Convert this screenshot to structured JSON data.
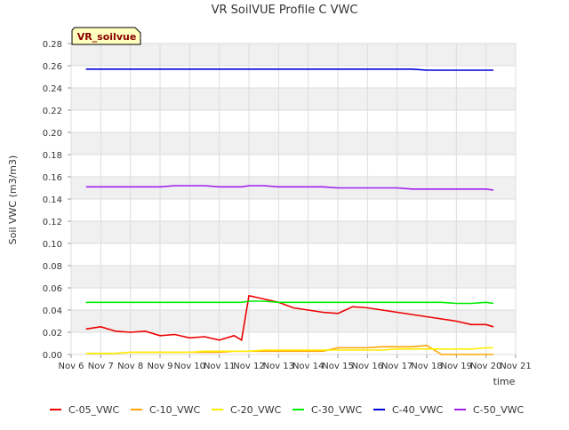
{
  "chart_data": {
    "type": "line",
    "title": "VR SoilVUE Profile C VWC",
    "xlabel": "time",
    "ylabel": "Soil VWC (m3/m3)",
    "station_label": "VR_soilvue",
    "x_ticks": [
      "Nov 6",
      "Nov 7",
      "Nov 8",
      "Nov 9",
      "Nov 10",
      "Nov 11",
      "Nov 12",
      "Nov 13",
      "Nov 14",
      "Nov 15",
      "Nov 16",
      "Nov 17",
      "Nov 18",
      "Nov 19",
      "Nov 20",
      "Nov 21"
    ],
    "xlim": [
      "Nov 6",
      "Nov 21"
    ],
    "ylim": [
      0,
      0.28
    ],
    "y_ticks": [
      "0.00",
      "0.02",
      "0.04",
      "0.06",
      "0.08",
      "0.10",
      "0.12",
      "0.14",
      "0.16",
      "0.18",
      "0.20",
      "0.22",
      "0.24",
      "0.26",
      "0.28"
    ],
    "grid": true,
    "legend_position": "bottom",
    "x": [
      "Nov 6 12:00",
      "Nov 7 00:00",
      "Nov 7 12:00",
      "Nov 8 00:00",
      "Nov 8 12:00",
      "Nov 9 00:00",
      "Nov 9 12:00",
      "Nov 10 00:00",
      "Nov 10 12:00",
      "Nov 11 00:00",
      "Nov 11 12:00",
      "Nov 11 18:00",
      "Nov 12 00:00",
      "Nov 12 12:00",
      "Nov 13 00:00",
      "Nov 13 12:00",
      "Nov 14 00:00",
      "Nov 14 12:00",
      "Nov 15 00:00",
      "Nov 15 12:00",
      "Nov 16 00:00",
      "Nov 16 12:00",
      "Nov 17 00:00",
      "Nov 17 12:00",
      "Nov 18 00:00",
      "Nov 18 12:00",
      "Nov 19 00:00",
      "Nov 19 12:00",
      "Nov 20 00:00",
      "Nov 20 06:00"
    ],
    "series": [
      {
        "name": "C-05_VWC",
        "color": "#ee0000",
        "values": [
          0.023,
          0.025,
          0.021,
          0.02,
          0.021,
          0.017,
          0.018,
          0.015,
          0.016,
          0.013,
          0.017,
          0.013,
          0.053,
          0.05,
          0.047,
          0.042,
          0.04,
          0.038,
          0.037,
          0.043,
          0.042,
          0.04,
          0.038,
          0.036,
          0.034,
          0.032,
          0.03,
          0.027,
          0.027,
          0.025
        ]
      },
      {
        "name": "C-10_VWC",
        "color": "#ffa500",
        "values": [
          0.001,
          0.001,
          0.001,
          0.002,
          0.002,
          0.002,
          0.002,
          0.002,
          0.002,
          0.002,
          0.003,
          0.003,
          0.003,
          0.003,
          0.003,
          0.003,
          0.003,
          0.003,
          0.006,
          0.006,
          0.006,
          0.007,
          0.007,
          0.007,
          0.008,
          0.0,
          0.0,
          0.0,
          0.0,
          0.0
        ]
      },
      {
        "name": "C-20_VWC",
        "color": "#ffee00",
        "values": [
          0.001,
          0.001,
          0.001,
          0.002,
          0.002,
          0.002,
          0.002,
          0.002,
          0.003,
          0.003,
          0.003,
          0.003,
          0.003,
          0.004,
          0.004,
          0.004,
          0.004,
          0.004,
          0.004,
          0.004,
          0.004,
          0.004,
          0.005,
          0.005,
          0.005,
          0.005,
          0.005,
          0.005,
          0.006,
          0.006
        ]
      },
      {
        "name": "C-30_VWC",
        "color": "#00ee00",
        "values": [
          0.047,
          0.047,
          0.047,
          0.047,
          0.047,
          0.047,
          0.047,
          0.047,
          0.047,
          0.047,
          0.047,
          0.047,
          0.048,
          0.048,
          0.047,
          0.047,
          0.047,
          0.047,
          0.047,
          0.047,
          0.047,
          0.047,
          0.047,
          0.047,
          0.047,
          0.047,
          0.046,
          0.046,
          0.047,
          0.046
        ]
      },
      {
        "name": "C-40_VWC",
        "color": "#0000dd",
        "values": [
          0.257,
          0.257,
          0.257,
          0.257,
          0.257,
          0.257,
          0.257,
          0.257,
          0.257,
          0.257,
          0.257,
          0.257,
          0.257,
          0.257,
          0.257,
          0.257,
          0.257,
          0.257,
          0.257,
          0.257,
          0.257,
          0.257,
          0.257,
          0.257,
          0.256,
          0.256,
          0.256,
          0.256,
          0.256,
          0.256
        ]
      },
      {
        "name": "C-50_VWC",
        "color": "#a020f0",
        "values": [
          0.151,
          0.151,
          0.151,
          0.151,
          0.151,
          0.151,
          0.152,
          0.152,
          0.152,
          0.151,
          0.151,
          0.151,
          0.152,
          0.152,
          0.151,
          0.151,
          0.151,
          0.151,
          0.15,
          0.15,
          0.15,
          0.15,
          0.15,
          0.149,
          0.149,
          0.149,
          0.149,
          0.149,
          0.149,
          0.148
        ]
      }
    ]
  }
}
